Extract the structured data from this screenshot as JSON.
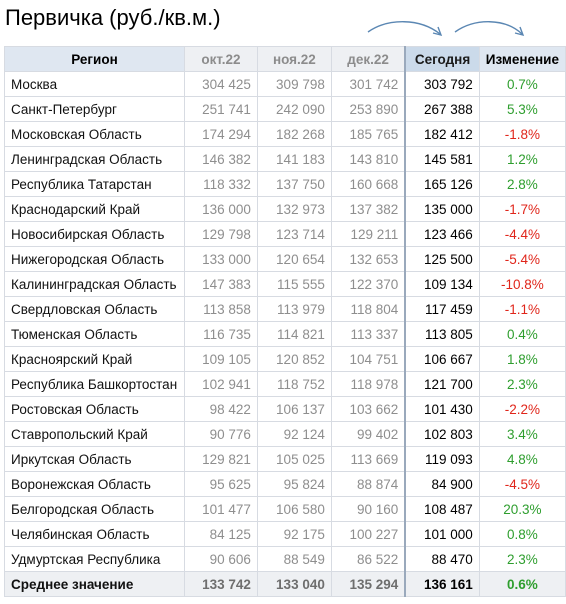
{
  "title": "Первичка (руб./кв.м.)",
  "colors": {
    "positive": "#2e9e2e",
    "negative": "#e0261b",
    "header_bg": "#dfe7f1",
    "arrow": "#5b87b3"
  },
  "icons": [
    "curved-arrow-icon",
    "curved-arrow-icon"
  ],
  "chart_data": {
    "type": "table",
    "columns": [
      "Регион",
      "окт.22",
      "ноя.22",
      "дек.22",
      "Сегодня",
      "Изменение"
    ],
    "rows": [
      {
        "region": "Москва",
        "oct": "304 425",
        "nov": "309 798",
        "dec": "301 742",
        "today": "303 792",
        "change": "0.7%"
      },
      {
        "region": "Санкт-Петербург",
        "oct": "251 741",
        "nov": "242 090",
        "dec": "253 890",
        "today": "267 388",
        "change": "5.3%"
      },
      {
        "region": "Московская Область",
        "oct": "174 294",
        "nov": "182 268",
        "dec": "185 765",
        "today": "182 412",
        "change": "-1.8%"
      },
      {
        "region": "Ленинградская Область",
        "oct": "146 382",
        "nov": "141 183",
        "dec": "143 810",
        "today": "145 581",
        "change": "1.2%"
      },
      {
        "region": "Республика Татарстан",
        "oct": "118 332",
        "nov": "137 750",
        "dec": "160 668",
        "today": "165 126",
        "change": "2.8%"
      },
      {
        "region": "Краснодарский Край",
        "oct": "136 000",
        "nov": "132 973",
        "dec": "137 382",
        "today": "135 000",
        "change": "-1.7%"
      },
      {
        "region": "Новосибирская Область",
        "oct": "129 798",
        "nov": "123 714",
        "dec": "129 211",
        "today": "123 466",
        "change": "-4.4%"
      },
      {
        "region": "Нижегородская Область",
        "oct": "133 000",
        "nov": "120 654",
        "dec": "132 653",
        "today": "125 500",
        "change": "-5.4%"
      },
      {
        "region": "Калининградская Область",
        "oct": "147 383",
        "nov": "115 555",
        "dec": "122 370",
        "today": "109 134",
        "change": "-10.8%"
      },
      {
        "region": "Свердловская Область",
        "oct": "113 858",
        "nov": "113 979",
        "dec": "118 804",
        "today": "117 459",
        "change": "-1.1%"
      },
      {
        "region": "Тюменская Область",
        "oct": "116 735",
        "nov": "114 821",
        "dec": "113 337",
        "today": "113 805",
        "change": "0.4%"
      },
      {
        "region": "Красноярский Край",
        "oct": "109 105",
        "nov": "120 852",
        "dec": "104 751",
        "today": "106 667",
        "change": "1.8%"
      },
      {
        "region": "Республика Башкортостан",
        "oct": "102 941",
        "nov": "118 752",
        "dec": "118 978",
        "today": "121 700",
        "change": "2.3%"
      },
      {
        "region": "Ростовская Область",
        "oct": "98 422",
        "nov": "106 137",
        "dec": "103 662",
        "today": "101 430",
        "change": "-2.2%"
      },
      {
        "region": "Ставропольский Край",
        "oct": "90 776",
        "nov": "92 124",
        "dec": "99 402",
        "today": "102 803",
        "change": "3.4%"
      },
      {
        "region": "Иркутская Область",
        "oct": "129 821",
        "nov": "105 025",
        "dec": "113 669",
        "today": "119 093",
        "change": "4.8%"
      },
      {
        "region": "Воронежская Область",
        "oct": "95 625",
        "nov": "95 824",
        "dec": "88 874",
        "today": "84 900",
        "change": "-4.5%"
      },
      {
        "region": "Белгородская Область",
        "oct": "101 477",
        "nov": "106 580",
        "dec": "90 160",
        "today": "108 487",
        "change": "20.3%"
      },
      {
        "region": "Челябинская Область",
        "oct": "84 125",
        "nov": "92 175",
        "dec": "100 227",
        "today": "101 000",
        "change": "0.8%"
      },
      {
        "region": "Удмуртская Республика",
        "oct": "90 606",
        "nov": "88 549",
        "dec": "86 522",
        "today": "88 470",
        "change": "2.3%"
      }
    ],
    "average": {
      "region": "Среднее значение",
      "oct": "133 742",
      "nov": "133 040",
      "dec": "135 294",
      "today": "136 161",
      "change": "0.6%"
    }
  }
}
